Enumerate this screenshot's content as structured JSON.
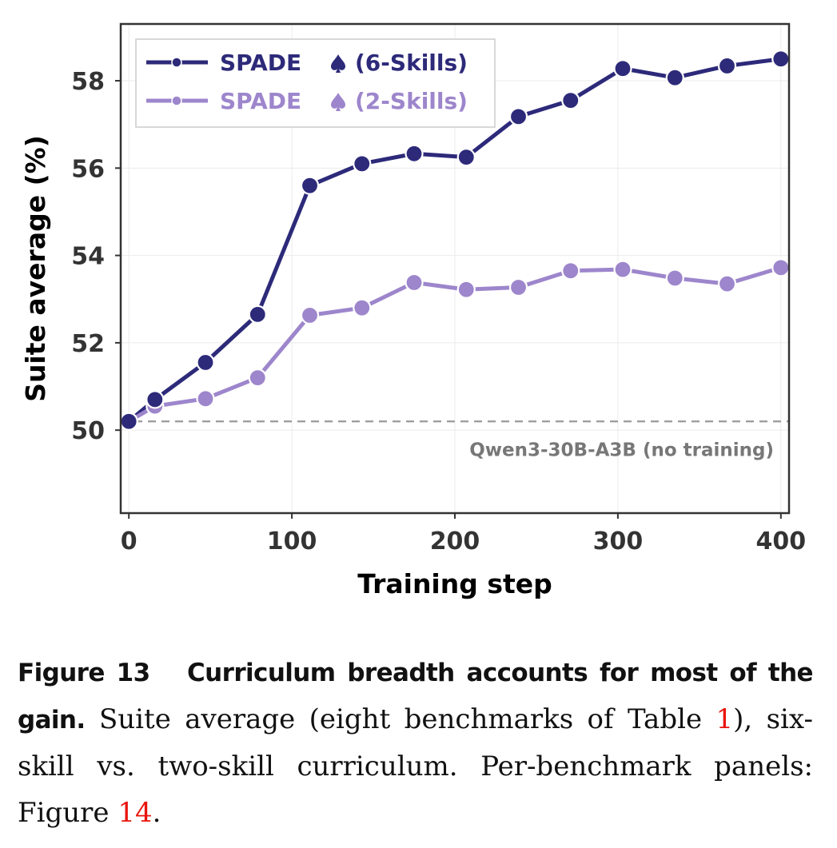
{
  "chart_data": {
    "type": "line",
    "xlabel": "Training step",
    "ylabel": "Suite average (%)",
    "xlim": [
      -5,
      405
    ],
    "ylim": [
      48.1,
      59.3
    ],
    "x_ticks": [
      0,
      100,
      200,
      300,
      400
    ],
    "y_ticks": [
      50,
      52,
      54,
      56,
      58
    ],
    "grid": true,
    "legend_position": "top-left",
    "series": [
      {
        "name": "SPADE",
        "name_suffix": "(6-Skills)",
        "color": "#2d2a7a",
        "x": [
          0,
          16,
          47,
          79,
          111,
          143,
          175,
          207,
          239,
          271,
          303,
          335,
          367,
          400
        ],
        "y": [
          50.2,
          50.7,
          51.55,
          52.65,
          55.6,
          56.1,
          56.33,
          56.25,
          57.18,
          57.55,
          58.28,
          58.07,
          58.34,
          58.5
        ]
      },
      {
        "name": "SPADE",
        "name_suffix": "(2-Skills)",
        "color": "#9d86cc",
        "x": [
          0,
          16,
          47,
          79,
          111,
          143,
          175,
          207,
          239,
          271,
          303,
          335,
          367,
          400
        ],
        "y": [
          50.2,
          50.55,
          50.72,
          51.2,
          52.63,
          52.8,
          53.38,
          53.22,
          53.27,
          53.65,
          53.68,
          53.48,
          53.35,
          53.72
        ]
      }
    ],
    "reference_line": {
      "y": 50.2,
      "label": "Qwen3-30B-A3B (no training)",
      "color": "#999999",
      "style": "dashed"
    }
  },
  "caption": {
    "figure_label": "Figure 13",
    "title": "Curriculum breadth accounts for most of the gain.",
    "text_before_ref1": " Suite average (eight benchmarks of Table ",
    "ref1": "1",
    "text_between": "), six-skill vs. two-skill curriculum. Per-benchmark panels: Figure ",
    "ref2": "14",
    "text_after": "."
  },
  "colors": {
    "reference_link": "#e8140c",
    "axis_frame": "#333333"
  }
}
